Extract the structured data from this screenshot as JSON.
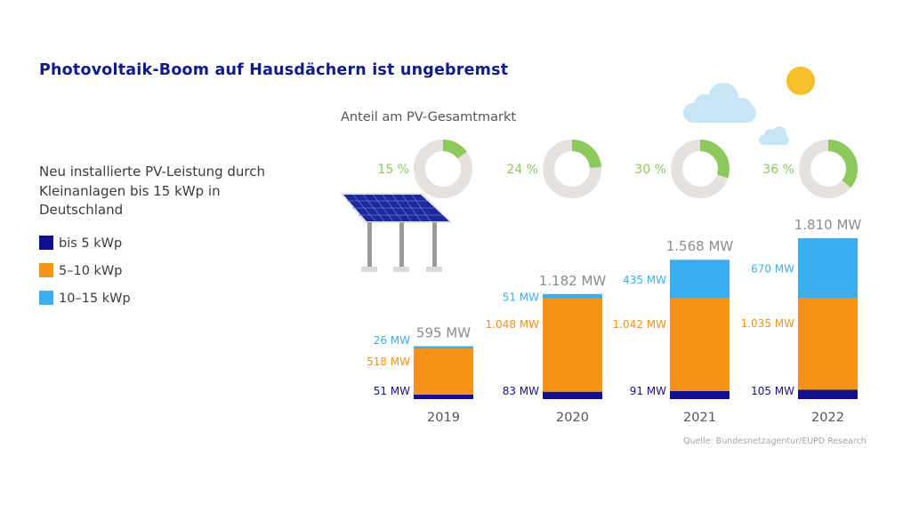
{
  "title": "Photovoltaik-Boom auf Hausdächern ist ungebremst",
  "subtitle": "Neu installierte PV-Leistung durch Kleinanlagen bis 15 kWp in Deutschland",
  "share_heading": "Anteil am PV-Gesamtmarkt",
  "source": "Quelle: Bundesnetzagentur/EUPD Research",
  "legend": [
    {
      "label": "bis 5 kWp",
      "color": "#10108f"
    },
    {
      "label": "5–10 kWp",
      "color": "#f59117"
    },
    {
      "label": "10–15 kWp",
      "color": "#3aaeee"
    }
  ],
  "colors": {
    "text": "#3a3a3a",
    "title": "#0f1a8c",
    "total_label": "#8c8c8c",
    "donut_fill": "#8cc85a",
    "donut_track": "#e5e1dd",
    "share_label": "#8cc85a",
    "cloud": "#c7e5f7",
    "sun": "#f6c02b",
    "panel": "#1d2a9c",
    "panel_frame": "#e3e3e3",
    "pole": "#9a9a9a",
    "pole_base": "#dadada"
  },
  "icons": [
    "sun-icon",
    "cloud-icon",
    "solar-panel-icon"
  ],
  "chart_data": {
    "type": "bar",
    "stacked": true,
    "title": "Neu installierte PV-Leistung durch Kleinanlagen bis 15 kWp in Deutschland",
    "unit": "MW",
    "categories": [
      "2019",
      "2020",
      "2021",
      "2022"
    ],
    "series": [
      {
        "name": "bis 5 kWp",
        "values": [
          51,
          83,
          91,
          105
        ],
        "labels": [
          "51 MW",
          "83 MW",
          "91 MW",
          "105 MW"
        ]
      },
      {
        "name": "5–10 kWp",
        "values": [
          518,
          1048,
          1042,
          1035
        ],
        "labels": [
          "518 MW",
          "1.048 MW",
          "1.042 MW",
          "1.035 MW"
        ]
      },
      {
        "name": "10–15 kWp",
        "values": [
          26,
          51,
          435,
          670
        ],
        "labels": [
          "26 MW",
          "51 MW",
          "435 MW",
          "670 MW"
        ]
      }
    ],
    "totals": [
      595,
      1182,
      1568,
      1810
    ],
    "total_labels": [
      "595 MW",
      "1.182 MW",
      "1.568 MW",
      "1.810 MW"
    ],
    "ylim": [
      0,
      1810
    ],
    "share": {
      "title": "Anteil am PV-Gesamtmarkt",
      "type": "pie",
      "values": [
        15,
        24,
        30,
        36
      ],
      "labels": [
        "15 %",
        "24 %",
        "30 %",
        "36 %"
      ]
    }
  }
}
